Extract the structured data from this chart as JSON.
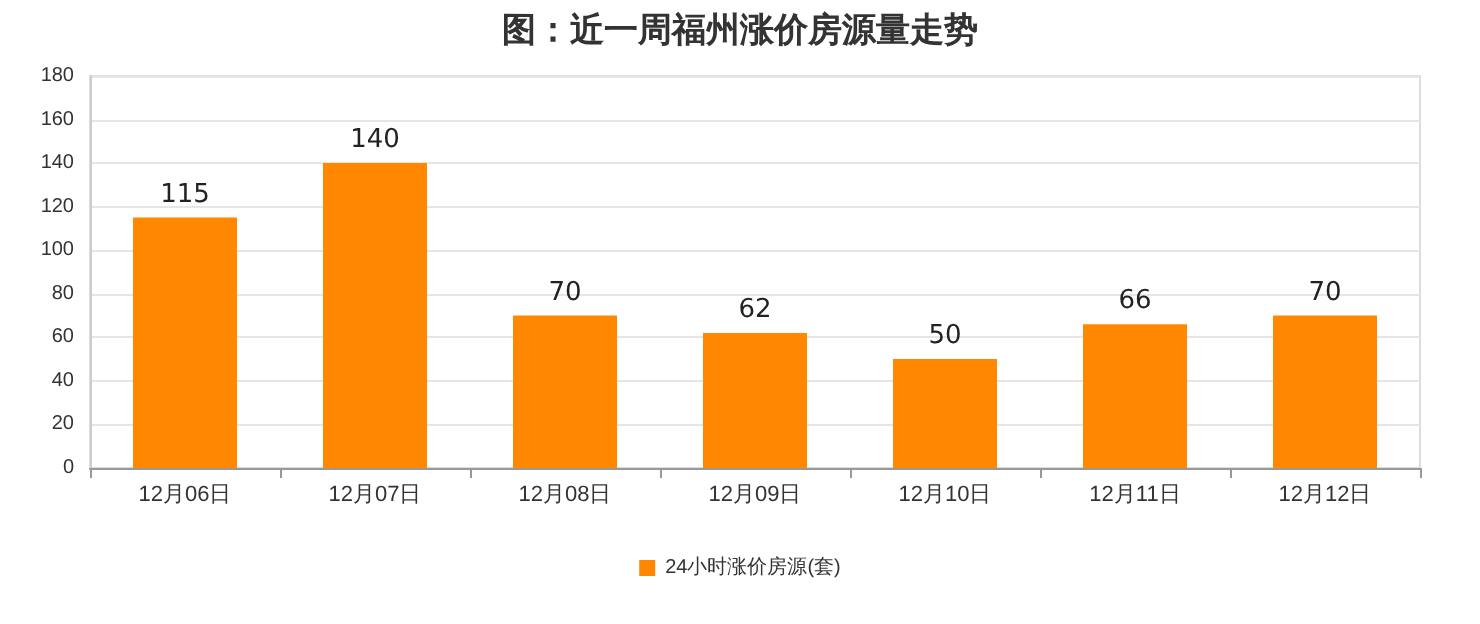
{
  "chart_data": {
    "type": "bar",
    "title": "图：近一周福州涨价房源量走势",
    "categories": [
      "12月06日",
      "12月07日",
      "12月08日",
      "12月09日",
      "12月10日",
      "12月11日",
      "12月12日"
    ],
    "series": [
      {
        "name": "24小时涨价房源(套)",
        "color": "#ff8800",
        "values": [
          115,
          140,
          70,
          62,
          50,
          66,
          70
        ]
      }
    ],
    "ylim": [
      0,
      180
    ],
    "yticks": [
      0,
      20,
      40,
      60,
      80,
      100,
      120,
      140,
      160,
      180
    ],
    "grid": "y",
    "legend": "bottom",
    "data_labels": true
  }
}
